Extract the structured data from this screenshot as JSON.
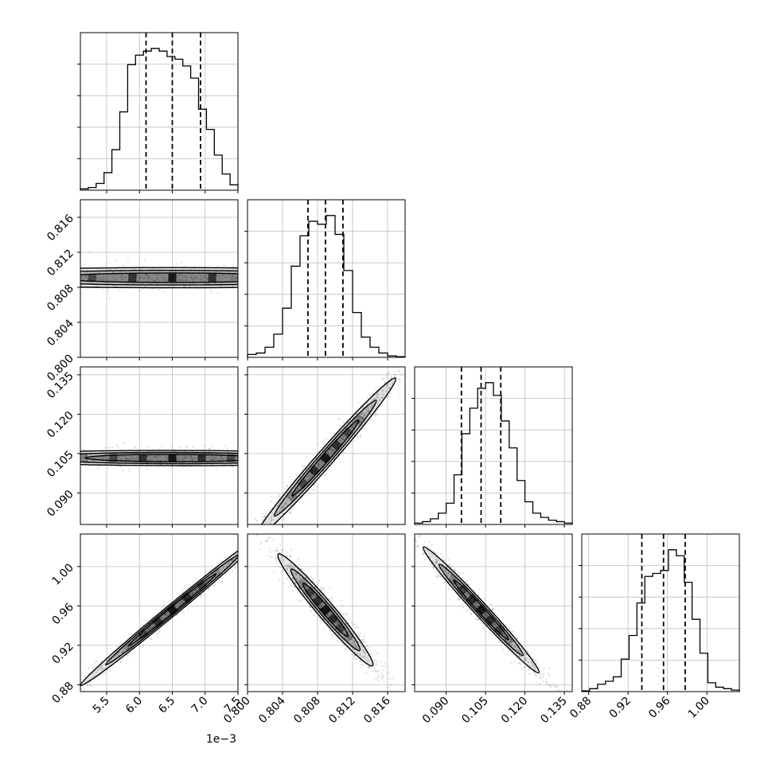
{
  "chart_data": {
    "type": "corner",
    "grid": true,
    "quantile_lines": "dashed",
    "parameters": [
      {
        "range": [
          0.0051,
          0.0075
        ],
        "ticks": [
          0.0055,
          0.006,
          0.0065,
          0.007,
          0.0075
        ],
        "tick_labels": [
          "5.5",
          "6.0",
          "6.5",
          "7.0",
          "7.5"
        ],
        "offset_label": "1e−3",
        "quantiles": [
          0.0061,
          0.0065,
          0.00693
        ],
        "hist": [
          0.01,
          0.02,
          0.05,
          0.13,
          0.3,
          0.58,
          0.93,
          1.0,
          1.03,
          1.05,
          1.03,
          0.99,
          0.97,
          0.92,
          0.83,
          0.6,
          0.45,
          0.26,
          0.12,
          0.04
        ]
      },
      {
        "range": [
          0.8,
          0.818
        ],
        "ticks": [
          0.8,
          0.804,
          0.808,
          0.812,
          0.816
        ],
        "tick_labels": [
          "0.800",
          "0.804",
          "0.808",
          "0.812",
          "0.816"
        ],
        "quantiles": [
          0.8069,
          0.8089,
          0.8109
        ],
        "hist": [
          0.02,
          0.03,
          0.07,
          0.16,
          0.34,
          0.63,
          0.84,
          0.94,
          0.92,
          0.98,
          0.85,
          0.6,
          0.31,
          0.14,
          0.07,
          0.03,
          0.01,
          0.005
        ]
      },
      {
        "range": [
          0.078,
          0.138
        ],
        "ticks": [
          0.09,
          0.105,
          0.12,
          0.135
        ],
        "tick_labels": [
          "0.090",
          "0.105",
          "0.120",
          "0.135"
        ],
        "quantiles": [
          0.0958,
          0.1033,
          0.1108
        ],
        "hist": [
          0.01,
          0.02,
          0.04,
          0.08,
          0.15,
          0.35,
          0.64,
          0.82,
          0.96,
          1.0,
          0.91,
          0.73,
          0.54,
          0.31,
          0.16,
          0.08,
          0.05,
          0.03,
          0.02,
          0.01
        ]
      },
      {
        "range": [
          0.873,
          1.033
        ],
        "ticks": [
          0.88,
          0.92,
          0.96,
          1.0
        ],
        "tick_labels": [
          "0.88",
          "0.92",
          "0.96",
          "1.00"
        ],
        "quantiles": [
          0.934,
          0.956,
          0.978
        ],
        "hist": [
          0.005,
          0.02,
          0.05,
          0.07,
          0.1,
          0.22,
          0.38,
          0.6,
          0.78,
          0.8,
          0.82,
          0.96,
          0.92,
          0.74,
          0.49,
          0.26,
          0.06,
          0.03,
          0.02,
          0.01
        ]
      }
    ],
    "pairs": [
      {
        "x": 0,
        "y": 1,
        "center": [
          0.0065,
          0.8091
        ],
        "slope": -0.0048,
        "sd_minor": 0.0007,
        "sd_major": 0.0019
      },
      {
        "x": 0,
        "y": 2,
        "center": [
          0.0065,
          0.1033
        ],
        "slope": -0.0245,
        "sd_minor": 0.0014,
        "sd_major": 0.0014
      },
      {
        "x": 1,
        "y": 2,
        "center": [
          0.8089,
          0.1033
        ],
        "slope": 3.8,
        "sd_minor": 0.0016,
        "sd_major": 0.004
      },
      {
        "x": 0,
        "y": 3,
        "center": [
          0.0065,
          0.956
        ],
        "slope": 55.0,
        "sd_minor": 0.0017,
        "sd_major": 0.0007
      },
      {
        "x": 1,
        "y": 3,
        "center": [
          0.8089,
          0.956
        ],
        "slope": -10.5,
        "sd_minor": 0.0045,
        "sd_major": 0.0027
      },
      {
        "x": 2,
        "y": 3,
        "center": [
          0.1033,
          0.956
        ],
        "slope": -2.9,
        "sd_minor": 0.0028,
        "sd_major": 0.011
      }
    ]
  }
}
